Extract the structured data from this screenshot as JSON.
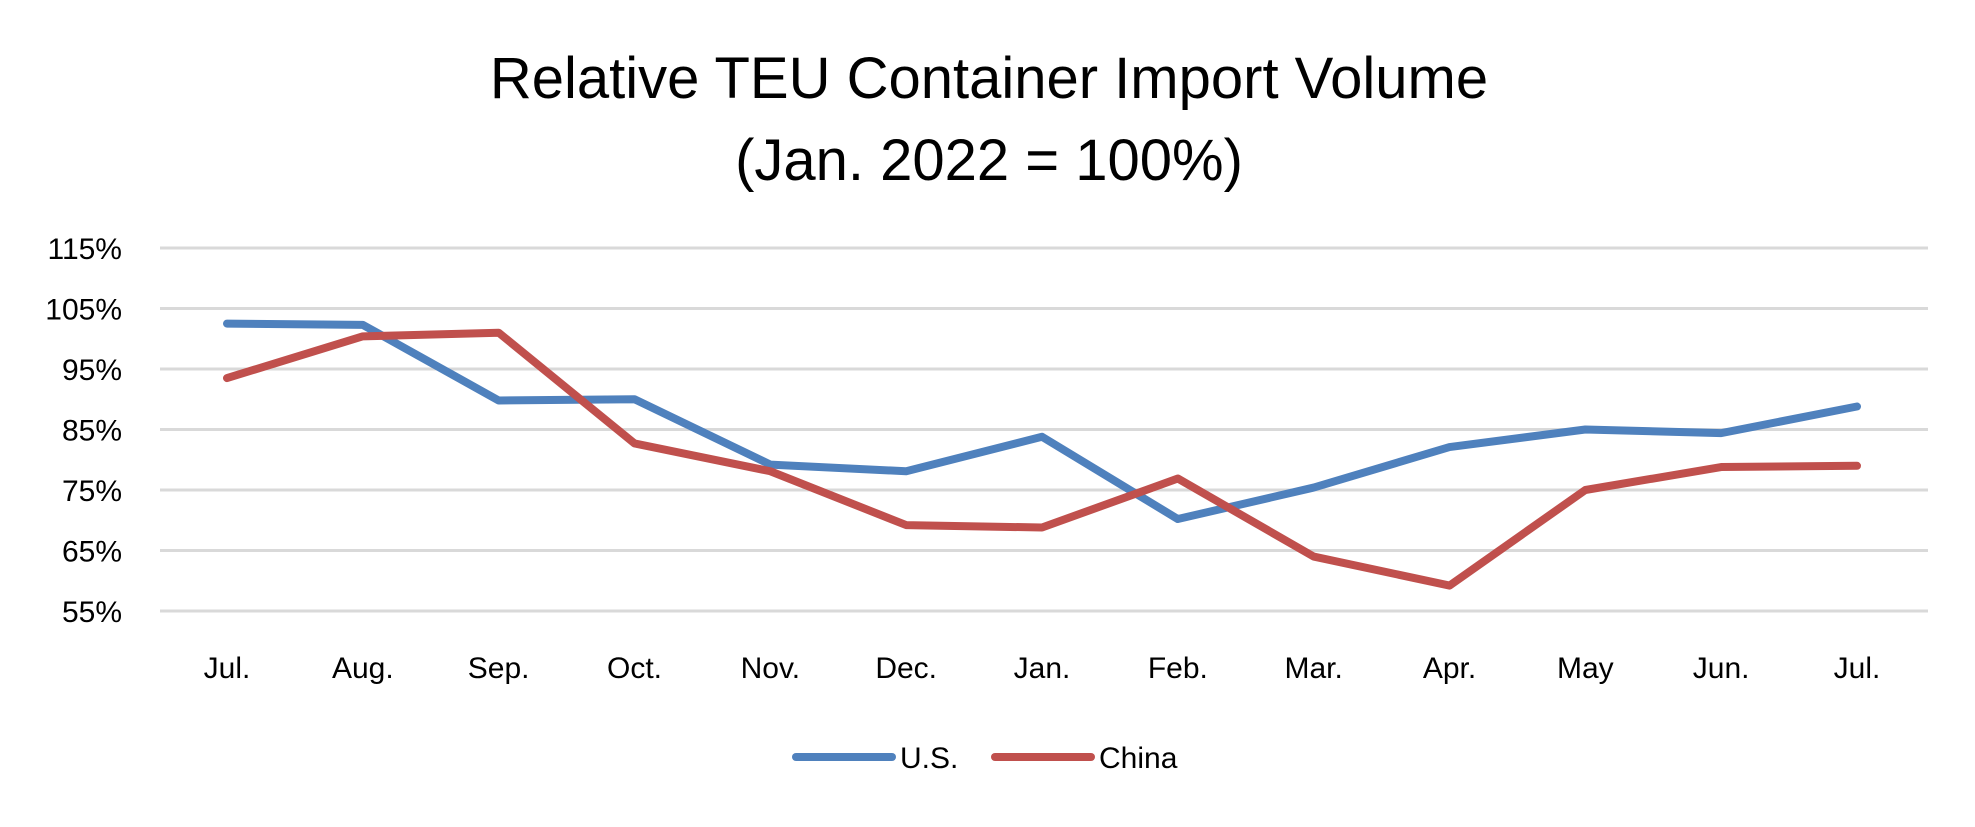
{
  "chart_data": {
    "type": "line",
    "title": [
      "Relative TEU Container Import  Volume",
      "(Jan. 2022 = 100%)"
    ],
    "xlabel": "",
    "ylabel": "",
    "categories": [
      "Jul.",
      "Aug.",
      "Sep.",
      "Oct.",
      "Nov.",
      "Dec.",
      "Jan.",
      "Feb.",
      "Mar.",
      "Apr.",
      "May",
      "Jun.",
      "Jul."
    ],
    "yticks": [
      55,
      65,
      75,
      85,
      95,
      105,
      115
    ],
    "ytick_labels": [
      "55%",
      "65%",
      "75%",
      "85%",
      "95%",
      "105%",
      "115%"
    ],
    "ylim": [
      55,
      115
    ],
    "grid": true,
    "legend_position": "bottom",
    "series": [
      {
        "name": "U.S.",
        "color": "#4f81bd",
        "values": [
          102.5,
          102.3,
          89.8,
          90.0,
          79.2,
          78.1,
          83.8,
          70.2,
          75.4,
          82.1,
          85.0,
          84.4,
          88.8
        ]
      },
      {
        "name": "China",
        "color": "#c0504d",
        "values": [
          93.5,
          100.4,
          101.0,
          82.7,
          78.1,
          69.2,
          68.8,
          76.9,
          64.0,
          59.2,
          75.0,
          78.8,
          79.0
        ]
      }
    ]
  }
}
